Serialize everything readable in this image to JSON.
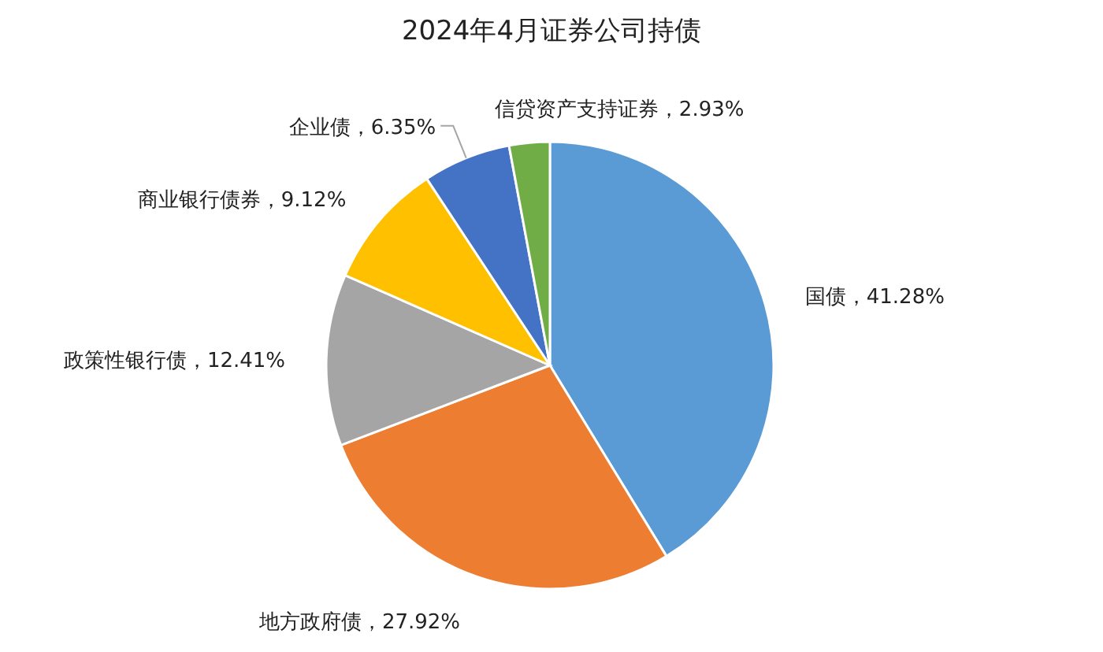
{
  "chart_data": {
    "type": "pie",
    "title": "2024年4月证券公司持债",
    "categories": [
      "国债",
      "地方政府债",
      "政策性银行债",
      "商业银行债券",
      "企业债",
      "信贷资产支持证券"
    ],
    "values": [
      41.28,
      27.92,
      12.41,
      9.12,
      6.35,
      2.93
    ],
    "colors": [
      "#5b9bd5",
      "#ed7d31",
      "#a5a5a5",
      "#ffc000",
      "#4472c4",
      "#70ad47"
    ],
    "value_labels": [
      "，41.28%",
      "，27.92%",
      "，12.41%",
      "，9.12%",
      "，6.35%",
      "，2.93%"
    ]
  }
}
